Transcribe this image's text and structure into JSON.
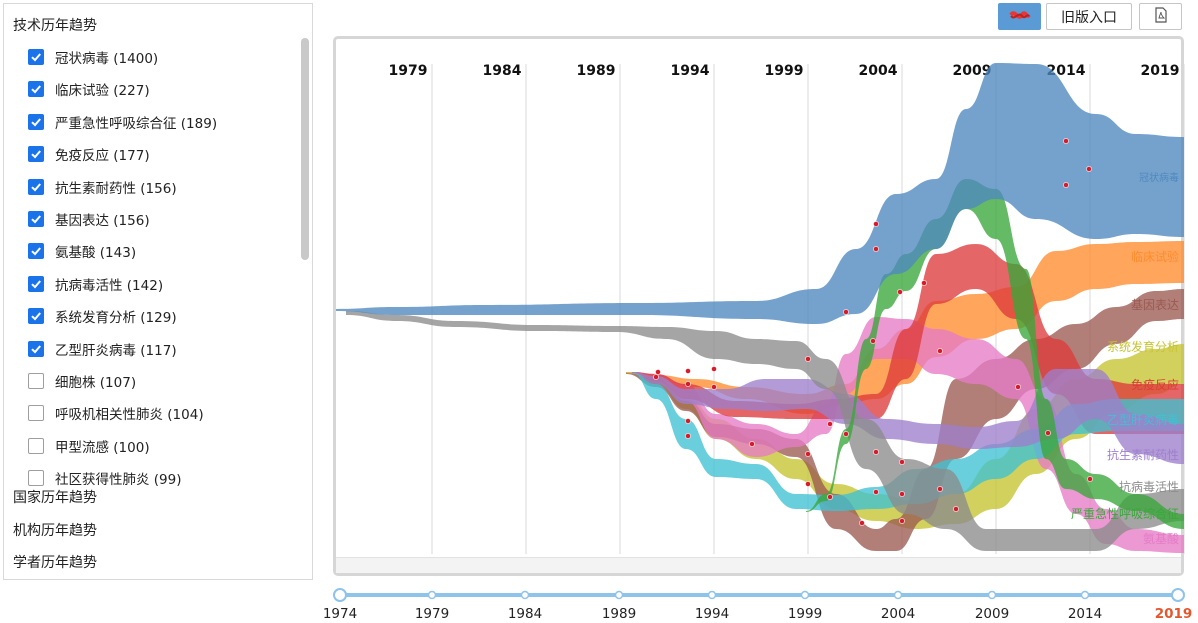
{
  "sidebar": {
    "section_tech": "技术历年趋势",
    "section_country": "国家历年趋势",
    "section_org": "机构历年趋势",
    "section_scholar": "学者历年趋势",
    "items": [
      {
        "label": "冠状病毒 (1400)",
        "checked": true
      },
      {
        "label": "临床试验 (227)",
        "checked": true
      },
      {
        "label": "严重急性呼吸综合征 (189)",
        "checked": true
      },
      {
        "label": "免疫反应 (177)",
        "checked": true
      },
      {
        "label": "抗生素耐药性 (156)",
        "checked": true
      },
      {
        "label": "基因表达 (156)",
        "checked": true
      },
      {
        "label": "氨基酸 (143)",
        "checked": true
      },
      {
        "label": "抗病毒活性 (142)",
        "checked": true
      },
      {
        "label": "系统发育分析 (129)",
        "checked": true
      },
      {
        "label": "乙型肝炎病毒 (117)",
        "checked": true
      },
      {
        "label": "细胞株 (107)",
        "checked": false
      },
      {
        "label": "呼吸机相关性肺炎 (104)",
        "checked": false
      },
      {
        "label": "甲型流感 (100)",
        "checked": false
      },
      {
        "label": "社区获得性肺炎 (99)",
        "checked": false
      }
    ]
  },
  "toolbar": {
    "chart_icon": "streamgraph-icon",
    "old_version_label": "旧版入口",
    "export_icon": "pdf-export-icon"
  },
  "chart_data": {
    "type": "area",
    "x_years": [
      "1979",
      "1984",
      "1989",
      "1994",
      "1999",
      "2004",
      "2009",
      "2014",
      "2019"
    ],
    "series": [
      {
        "name": "冠状病毒",
        "color": "#4e88bf"
      },
      {
        "name": "临床试验",
        "color": "#ff8c2e"
      },
      {
        "name": "基因表达",
        "color": "#9b5a52"
      },
      {
        "name": "系统发育分析",
        "color": "#c6c42f"
      },
      {
        "name": "免疫反应",
        "color": "#de3b3b"
      },
      {
        "name": "乙型肝炎病毒",
        "color": "#3fc1d3"
      },
      {
        "name": "抗生素耐药性",
        "color": "#9e7fcc"
      },
      {
        "name": "抗病毒活性",
        "color": "#8c8c8c"
      },
      {
        "name": "严重急性呼吸综合征",
        "color": "#3aa73a"
      },
      {
        "name": "氨基酸",
        "color": "#e57bc6"
      }
    ]
  },
  "timeline": {
    "years": [
      "1974",
      "1979",
      "1984",
      "1989",
      "1994",
      "1999",
      "2004",
      "2009",
      "2014",
      "2019"
    ],
    "active": "2019"
  }
}
